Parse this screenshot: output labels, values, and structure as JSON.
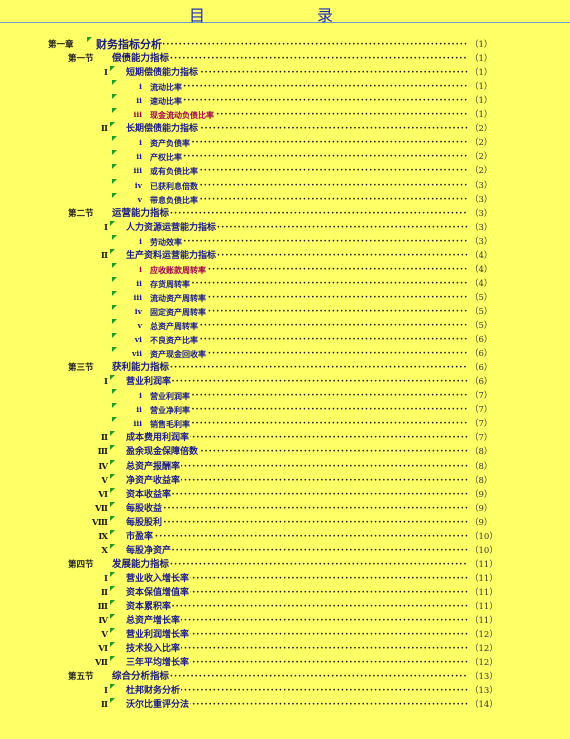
{
  "title": "目　录",
  "toc": [
    {
      "level": 0,
      "num": "第一章",
      "label": "财务指标分析",
      "page": "（1）"
    },
    {
      "level": 1,
      "num": "第一节",
      "label": "偿债能力指标",
      "page": "（1）"
    },
    {
      "level": 2,
      "num": "Ⅰ",
      "label": "短期偿债能力指标",
      "page": "（1）"
    },
    {
      "level": 3,
      "num": "ⅰ",
      "label": "流动比率",
      "page": "（1）"
    },
    {
      "level": 3,
      "num": "ⅱ",
      "label": "速动比率",
      "page": "（1）"
    },
    {
      "level": 3,
      "num": "ⅲ",
      "label": "现金流动负债比率",
      "page": "（1）",
      "highlight": true
    },
    {
      "level": 2,
      "num": "Ⅱ",
      "label": "长期偿债能力指标",
      "page": "（2）"
    },
    {
      "level": 3,
      "num": "ⅰ",
      "label": "资产负债率",
      "page": "（2）"
    },
    {
      "level": 3,
      "num": "ⅱ",
      "label": "产权比率",
      "page": "（2）"
    },
    {
      "level": 3,
      "num": "ⅲ",
      "label": "或有负债比率",
      "page": "（2）"
    },
    {
      "level": 3,
      "num": "ⅳ",
      "label": "已获利息倍数",
      "page": "（3）"
    },
    {
      "level": 3,
      "num": "ⅴ",
      "label": "带息负债比率",
      "page": "（3）"
    },
    {
      "level": 1,
      "num": "第二节",
      "label": "运营能力指标",
      "page": "（3）"
    },
    {
      "level": 2,
      "num": "Ⅰ",
      "label": "人力资源运营能力指标",
      "page": "（3）"
    },
    {
      "level": 3,
      "num": "ⅰ",
      "label": "劳动效率",
      "page": "（3）"
    },
    {
      "level": 2,
      "num": "Ⅱ",
      "label": "生产资料运营能力指标",
      "page": "（4）"
    },
    {
      "level": 3,
      "num": "ⅰ",
      "label": "应收账款周转率",
      "page": "（4）",
      "highlight": true
    },
    {
      "level": 3,
      "num": "ⅱ",
      "label": "存货周转率",
      "page": "（4）"
    },
    {
      "level": 3,
      "num": "ⅲ",
      "label": "流动资产周转率",
      "page": "（5）"
    },
    {
      "level": 3,
      "num": "ⅳ",
      "label": "固定资产周转率",
      "page": "（5）"
    },
    {
      "level": 3,
      "num": "ⅴ",
      "label": "总资产周转率",
      "page": "（5）"
    },
    {
      "level": 3,
      "num": "ⅵ",
      "label": "不良资产比率",
      "page": "（6）"
    },
    {
      "level": 3,
      "num": "ⅶ",
      "label": "资产现金回收率",
      "page": "（6）"
    },
    {
      "level": 1,
      "num": "第三节",
      "label": "获利能力指标",
      "page": "（6）"
    },
    {
      "level": 2,
      "num": "Ⅰ",
      "label": "营业利润率",
      "page": "（6）"
    },
    {
      "level": 3,
      "num": "ⅰ",
      "label": "营业利润率",
      "page": "（7）"
    },
    {
      "level": 3,
      "num": "ⅱ",
      "label": "营业净利率",
      "page": "（7）"
    },
    {
      "level": 3,
      "num": "ⅲ",
      "label": "销售毛利率",
      "page": "（7）"
    },
    {
      "level": 2,
      "num": "Ⅱ",
      "label": "成本费用利润率",
      "page": "（7）"
    },
    {
      "level": 2,
      "num": "Ⅲ",
      "label": "盈余现金保障倍数",
      "page": "（8）"
    },
    {
      "level": 2,
      "num": "Ⅳ",
      "label": "总资产报酬率",
      "page": "（8）"
    },
    {
      "level": 2,
      "num": "Ⅴ",
      "label": "净资产收益率",
      "page": "（8）"
    },
    {
      "level": 2,
      "num": "Ⅵ",
      "label": "资本收益率",
      "page": "（9）"
    },
    {
      "level": 2,
      "num": "Ⅶ",
      "label": "每股收益",
      "page": "（9）"
    },
    {
      "level": 2,
      "num": "Ⅷ",
      "label": "每股股利",
      "page": "（9）"
    },
    {
      "level": 2,
      "num": "Ⅸ",
      "label": "市盈率",
      "page": "（10）"
    },
    {
      "level": 2,
      "num": "Ⅹ",
      "label": "每股净资产",
      "page": "（10）"
    },
    {
      "level": 1,
      "num": "第四节",
      "label": "发展能力指标",
      "page": "（11）"
    },
    {
      "level": 2,
      "num": "Ⅰ",
      "label": "营业收入增长率",
      "page": "（11）"
    },
    {
      "level": 2,
      "num": "Ⅱ",
      "label": "资本保值增值率",
      "page": "（11）"
    },
    {
      "level": 2,
      "num": "Ⅲ",
      "label": "资本累积率",
      "page": "（11）"
    },
    {
      "level": 2,
      "num": "Ⅳ",
      "label": "总资产增长率",
      "page": "（11）"
    },
    {
      "level": 2,
      "num": "Ⅴ",
      "label": "营业利润增长率",
      "page": "（12）"
    },
    {
      "level": 2,
      "num": "Ⅵ",
      "label": "技术投入比率",
      "page": "（12）"
    },
    {
      "level": 2,
      "num": "Ⅶ",
      "label": "三年平均增长率",
      "page": "（12）"
    },
    {
      "level": 1,
      "num": "第五节",
      "label": "综合分析指标",
      "page": "（13）"
    },
    {
      "level": 2,
      "num": "Ⅰ",
      "label": "杜邦财务分析",
      "page": "（13）"
    },
    {
      "level": 2,
      "num": "Ⅱ",
      "label": "沃尔比重评分法",
      "page": "（14）"
    }
  ]
}
